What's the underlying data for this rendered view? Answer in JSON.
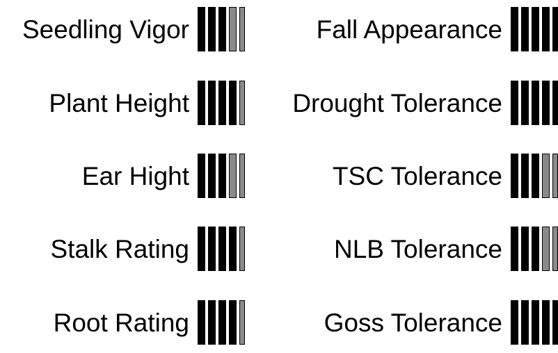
{
  "ratings": [
    {
      "label": "Seedling Vigor",
      "filled": 3,
      "total": 5
    },
    {
      "label": "Plant Height",
      "filled": 4,
      "total": 5
    },
    {
      "label": "Ear Hight",
      "filled": 3,
      "total": 5
    },
    {
      "label": "Stalk Rating",
      "filled": 4,
      "total": 5
    },
    {
      "label": "Root Rating",
      "filled": 4,
      "total": 5
    },
    {
      "label": "Fall Appearance",
      "filled": 5,
      "total": 5
    },
    {
      "label": "Drought Tolerance",
      "filled": 5,
      "total": 5
    },
    {
      "label": "TSC Tolerance",
      "filled": 3,
      "total": 5
    },
    {
      "label": "NLB Tolerance",
      "filled": 3,
      "total": 5
    },
    {
      "label": "Goss Tolerance",
      "filled": 5,
      "total": 5
    }
  ],
  "colors": {
    "filled": "#000000",
    "empty": "#8a8a8a"
  }
}
